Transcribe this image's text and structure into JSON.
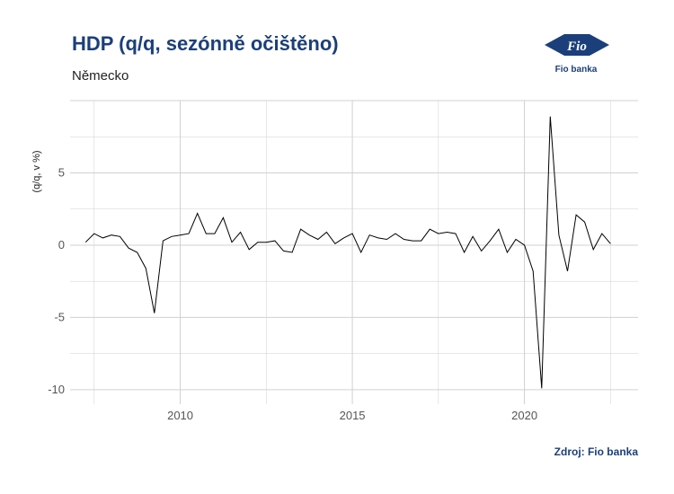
{
  "header": {
    "title": "HDP (q/q, sezónně očištěno)",
    "subtitle": "Německo",
    "source": "Zdroj: Fio banka",
    "logo_text": "Fio banka",
    "logo_mark": "Fio"
  },
  "colors": {
    "title": "#1b3f7a",
    "line": "#000000",
    "grid": "#d0d0d0"
  },
  "chart_data": {
    "type": "line",
    "title": "HDP (q/q, sezónně očištěno)",
    "subtitle": "Německo",
    "ylabel": "(q/q, v %)",
    "xlabel": "",
    "xlim": [
      2006.8,
      2023.3
    ],
    "ylim": [
      -11,
      10
    ],
    "xticks": [
      2010,
      2015,
      2020
    ],
    "yticks": [
      -10,
      -5,
      0,
      5
    ],
    "grid": true,
    "series": [
      {
        "x": [
          2007.25,
          2007.5,
          2007.75,
          2008.0,
          2008.25,
          2008.5,
          2008.75,
          2009.0,
          2009.25,
          2009.5,
          2009.75,
          2010.0,
          2010.25,
          2010.5,
          2010.75,
          2011.0,
          2011.25,
          2011.5,
          2011.75,
          2012.0,
          2012.25,
          2012.5,
          2012.75,
          2013.0,
          2013.25,
          2013.5,
          2013.75,
          2014.0,
          2014.25,
          2014.5,
          2014.75,
          2015.0,
          2015.25,
          2015.5,
          2015.75,
          2016.0,
          2016.25,
          2016.5,
          2016.75,
          2017.0,
          2017.25,
          2017.5,
          2017.75,
          2018.0,
          2018.25,
          2018.5,
          2018.75,
          2019.0,
          2019.25,
          2019.5,
          2019.75,
          2020.0,
          2020.25,
          2020.5,
          2020.75,
          2021.0,
          2021.25,
          2021.5,
          2021.75,
          2022.0,
          2022.25,
          2022.5
        ],
        "values": [
          0.2,
          0.8,
          0.5,
          0.7,
          0.6,
          -0.2,
          -0.5,
          -1.6,
          -4.7,
          0.3,
          0.6,
          0.7,
          0.8,
          2.2,
          0.8,
          0.8,
          1.9,
          0.2,
          0.9,
          -0.3,
          0.2,
          0.2,
          0.3,
          -0.4,
          -0.5,
          1.1,
          0.7,
          0.4,
          0.9,
          0.1,
          0.5,
          0.8,
          -0.5,
          0.7,
          0.5,
          0.4,
          0.8,
          0.4,
          0.3,
          0.3,
          1.1,
          0.8,
          0.9,
          0.8,
          -0.5,
          0.6,
          -0.4,
          0.3,
          1.1,
          -0.5,
          0.4,
          0.0,
          -1.8,
          -9.9,
          8.9,
          0.7,
          -1.8,
          2.1,
          1.6,
          -0.3,
          0.8,
          0.1
        ]
      }
    ]
  }
}
